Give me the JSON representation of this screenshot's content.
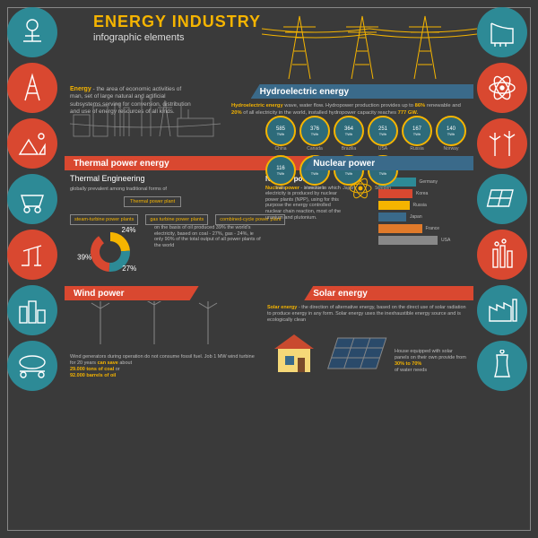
{
  "colors": {
    "bg": "#3a3a3a",
    "teal": "#2d8a96",
    "red": "#d94830",
    "gold": "#f5b400",
    "blue": "#3a6a8a",
    "darkteal": "#1f5560",
    "grey": "#555",
    "white": "#ffffff",
    "orange": "#e07a2a"
  },
  "title": "ENERGY INDUSTRY",
  "subtitle": "infographic elements",
  "title_color": "#f5b400",
  "intro": {
    "lead": "Energy",
    "text": " - the area of economic activities of man, set of large natural and artificial subsystems serving for conversion, distribution and use of energy resources of all kinds."
  },
  "icons_left": [
    {
      "name": "valve",
      "bg": "#2d8a96"
    },
    {
      "name": "derrick",
      "bg": "#d94830"
    },
    {
      "name": "mining",
      "bg": "#d94830"
    },
    {
      "name": "coal-cart",
      "bg": "#2d8a96"
    },
    {
      "name": "pumpjack",
      "bg": "#d94830"
    },
    {
      "name": "city",
      "bg": "#2d8a96"
    },
    {
      "name": "tank-car",
      "bg": "#2d8a96"
    }
  ],
  "icons_right": [
    {
      "name": "dam",
      "bg": "#2d8a96"
    },
    {
      "name": "atom",
      "bg": "#d94830"
    },
    {
      "name": "wind-turbines",
      "bg": "#d94830"
    },
    {
      "name": "solar-panels",
      "bg": "#2d8a96"
    },
    {
      "name": "smokestacks",
      "bg": "#d94830"
    },
    {
      "name": "factory",
      "bg": "#2d8a96"
    },
    {
      "name": "cooling-tower",
      "bg": "#2d8a96"
    }
  ],
  "hydro": {
    "banner": "Hydroelectric energy",
    "banner_bg": "#3a6a8a",
    "text_lead": "Hydroelectric energy",
    "text": " wave, water flow. Hydropower production provides up to ",
    "pct": "86%",
    "text2": " renewable and ",
    "pct2": "20%",
    "text3": " of all electricity in the world, installed hydropower capacity reaches ",
    "gw": "777 GW.",
    "bubbles": [
      {
        "v": "585",
        "u": "TWh",
        "c": "China"
      },
      {
        "v": "376",
        "u": "TWh",
        "c": "Canada"
      },
      {
        "v": "364",
        "u": "TWh",
        "c": "Brazilia"
      },
      {
        "v": "251",
        "u": "TWh",
        "c": "USA"
      },
      {
        "v": "167",
        "u": "TWh",
        "c": "Russia"
      },
      {
        "v": "140",
        "u": "TWh",
        "c": "Norway"
      },
      {
        "v": "116",
        "u": "TWh",
        "c": "India"
      },
      {
        "v": "74",
        "u": "TWh",
        "c": "Venezuela"
      },
      {
        "v": "69",
        "u": "TWh",
        "c": "Japan"
      },
      {
        "v": "66",
        "u": "TWh",
        "c": "Sweden"
      }
    ]
  },
  "thermal": {
    "banner": "Thermal power energy",
    "banner_bg": "#d94830",
    "heading": "Thermal Engineering",
    "sub": "globally prevalent among traditional forms of",
    "root": "Thermal power plant",
    "children": [
      "steam-turbine power plants",
      "gas turbine power plants",
      "combined-cycle power plant"
    ],
    "donut": {
      "values": [
        24,
        27,
        39
      ],
      "colors": [
        "#f5b400",
        "#2d8a96",
        "#d94830"
      ],
      "labels": [
        "24%",
        "27%",
        "39%"
      ]
    },
    "donut_text": "on the basis of oil produced 39% the world's electricity, based on coal - 27%, gas - 24%, ie only 90% of the total output of all power plants of the world"
  },
  "nuclear": {
    "banner": "Nuclear power",
    "banner_bg": "#3a6a8a",
    "heading": "Nuclear power",
    "text": " - a sector in which electricity is produced by nuclear power plants (NPP), using for this purpose the energy controlled nuclear chain reaction, most of the uranium and plutonium.",
    "bars": [
      {
        "name": "Germany",
        "v": 60,
        "c": "#2d8a96"
      },
      {
        "name": "Korea",
        "v": 55,
        "c": "#d94830"
      },
      {
        "name": "Russia",
        "v": 50,
        "c": "#f5b400"
      },
      {
        "name": "Japan",
        "v": 45,
        "c": "#3a6a8a"
      },
      {
        "name": "France",
        "v": 70,
        "c": "#e07a2a"
      },
      {
        "name": "USA",
        "v": 95,
        "c": "#888888"
      }
    ],
    "bar_max": 100
  },
  "wind": {
    "banner": "Wind power",
    "banner_bg": "#d94830",
    "text1": "Wind generators during operation do not consume fossil fuel. Job 1 MW wind turbine for 20 years",
    "highlight": "can save",
    "text2": " about",
    "v1": "29.000 tons of coal",
    "or": " or ",
    "v2": "92.000 barrels of oil"
  },
  "solar": {
    "banner": "Solar energy",
    "banner_bg": "#d94830",
    "lead": "Solar energy",
    "text": " - the direction of alternative energy, based on the direct use of solar radiation to produce energy in any form. Solar energy uses the inexhaustible energy source and is ecologically clean",
    "box": "House equipped with solar panels on their own provide from",
    "range": "30% to 70%",
    "box2": "of water needs"
  }
}
